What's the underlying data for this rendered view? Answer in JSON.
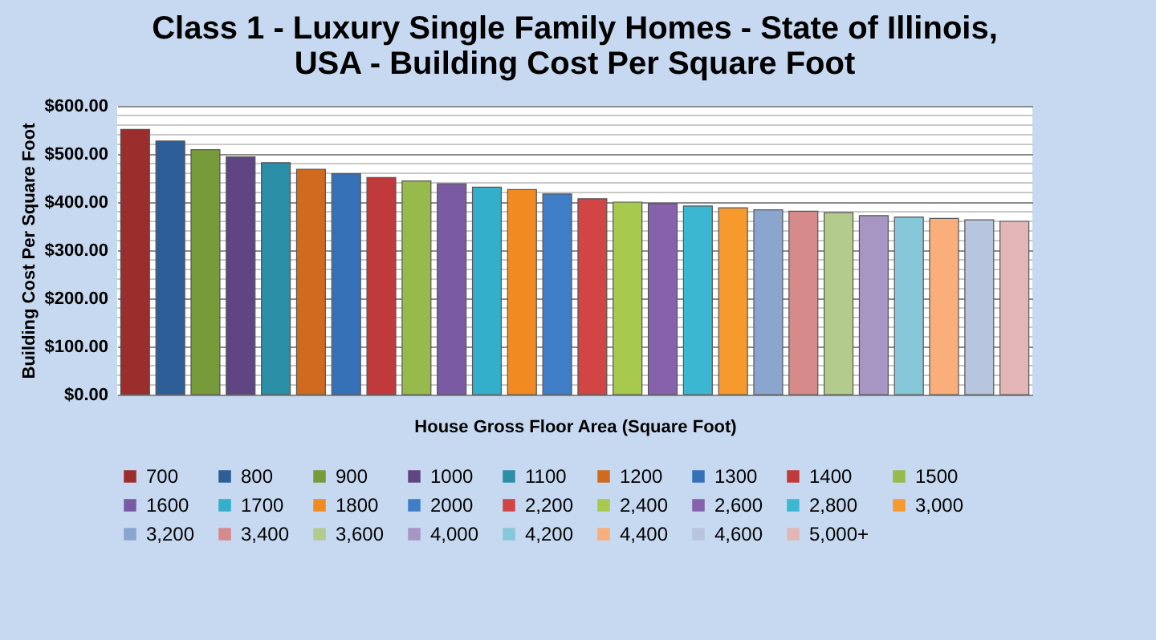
{
  "chart_data": {
    "type": "bar",
    "title": [
      "Class 1 - Luxury Single Family Homes  - State of Illinois,",
      "USA - Building Cost Per Square Foot"
    ],
    "xlabel": "House Gross Floor Area (Square Foot)",
    "ylabel": "Building Cost Per Square Foot",
    "categories": [
      null
    ],
    "series": [
      {
        "name": "700",
        "color": "#9b2d2d",
        "values": [
          551
        ]
      },
      {
        "name": "800",
        "color": "#2e5e97",
        "values": [
          527
        ]
      },
      {
        "name": "900",
        "color": "#779a3a",
        "values": [
          509
        ]
      },
      {
        "name": "1000",
        "color": "#5f4682",
        "values": [
          494
        ]
      },
      {
        "name": "1100",
        "color": "#2a8ea6",
        "values": [
          482
        ]
      },
      {
        "name": "1200",
        "color": "#d06a1e",
        "values": [
          468
        ]
      },
      {
        "name": "1300",
        "color": "#3671b8",
        "values": [
          459
        ]
      },
      {
        "name": "1400",
        "color": "#c0393b",
        "values": [
          451
        ]
      },
      {
        "name": "1500",
        "color": "#96bb4c",
        "values": [
          444
        ]
      },
      {
        "name": "1600",
        "color": "#7a5ba3",
        "values": [
          438
        ]
      },
      {
        "name": "1700",
        "color": "#33aecb",
        "values": [
          431
        ]
      },
      {
        "name": "1800",
        "color": "#f28a22",
        "values": [
          426
        ]
      },
      {
        "name": "2000",
        "color": "#3f7ec6",
        "values": [
          417
        ]
      },
      {
        "name": "2,200",
        "color": "#d14545",
        "values": [
          407
        ]
      },
      {
        "name": "2,400",
        "color": "#a6c94e",
        "values": [
          400
        ]
      },
      {
        "name": "2,600",
        "color": "#8562ab",
        "values": [
          397
        ]
      },
      {
        "name": "2,800",
        "color": "#3bb7d2",
        "values": [
          392
        ]
      },
      {
        "name": "3,000",
        "color": "#f79a2e",
        "values": [
          388
        ]
      },
      {
        "name": "3,200",
        "color": "#8aa6cf",
        "values": [
          384
        ]
      },
      {
        "name": "3,400",
        "color": "#d78a8a",
        "values": [
          381
        ]
      },
      {
        "name": "3,600",
        "color": "#b3cc8e",
        "values": [
          378
        ]
      },
      {
        "name": "4,000",
        "color": "#a796c4",
        "values": [
          372
        ]
      },
      {
        "name": "4,200",
        "color": "#86c7da",
        "values": [
          369
        ]
      },
      {
        "name": "4,400",
        "color": "#f9ae7c",
        "values": [
          366
        ]
      },
      {
        "name": "4,600",
        "color": "#b7c5de",
        "values": [
          363
        ]
      },
      {
        "name": "5,000+",
        "color": "#e3b6b6",
        "values": [
          360
        ]
      }
    ],
    "ylim": [
      0,
      600
    ],
    "yticks": [
      {
        "value": 0,
        "label": "$0.00"
      },
      {
        "value": 20,
        "label": null
      },
      {
        "value": 40,
        "label": null
      },
      {
        "value": 60,
        "label": null
      },
      {
        "value": 80,
        "label": null
      },
      {
        "value": 100,
        "label": "$100.00"
      },
      {
        "value": 120,
        "label": null
      },
      {
        "value": 140,
        "label": null
      },
      {
        "value": 160,
        "label": null
      },
      {
        "value": 180,
        "label": null
      },
      {
        "value": 200,
        "label": "$200.00"
      },
      {
        "value": 220,
        "label": null
      },
      {
        "value": 240,
        "label": null
      },
      {
        "value": 260,
        "label": null
      },
      {
        "value": 280,
        "label": null
      },
      {
        "value": 300,
        "label": "$300.00"
      },
      {
        "value": 320,
        "label": null
      },
      {
        "value": 340,
        "label": null
      },
      {
        "value": 360,
        "label": null
      },
      {
        "value": 380,
        "label": null
      },
      {
        "value": 400,
        "label": "$400.00"
      },
      {
        "value": 420,
        "label": null
      },
      {
        "value": 440,
        "label": null
      },
      {
        "value": 460,
        "label": null
      },
      {
        "value": 480,
        "label": null
      },
      {
        "value": 500,
        "label": "$500.00"
      },
      {
        "value": 520,
        "label": null
      },
      {
        "value": 540,
        "label": null
      },
      {
        "value": 560,
        "label": null
      },
      {
        "value": 580,
        "label": null
      },
      {
        "value": 600,
        "label": "$600.00"
      }
    ],
    "grid": true,
    "legend": "bottom",
    "tick_labels": "y"
  }
}
